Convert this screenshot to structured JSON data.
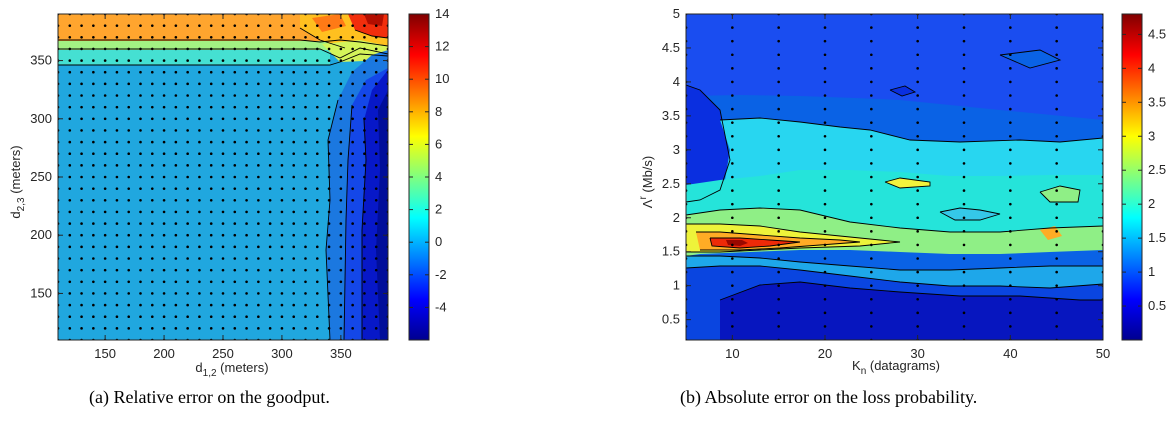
{
  "chart_data": [
    {
      "type": "heatmap",
      "subtype": "filled-contour",
      "caption": "(a) Relative error on the goodput.",
      "xlabel_main": "d",
      "xlabel_sub": "1,2",
      "xlabel_rest": " (meters)",
      "ylabel_main": "d",
      "ylabel_sub": "2,3",
      "ylabel_rest": " (meters)",
      "xlim": [
        110,
        390
      ],
      "ylim": [
        110,
        390
      ],
      "xticks": [
        150,
        200,
        250,
        300,
        350
      ],
      "yticks": [
        150,
        200,
        250,
        300,
        350
      ],
      "colorbar": {
        "min": -6,
        "max": 14,
        "ticks": [
          14,
          12,
          10,
          8,
          6,
          4,
          2,
          0,
          -2,
          -4
        ],
        "labels": [
          "14",
          "12",
          "10",
          "8",
          "6",
          "4",
          "2",
          "0",
          "-2",
          "-4"
        ]
      },
      "grid_points": {
        "x_start": 110,
        "x_step": 10,
        "x_end": 390,
        "y_start": 110,
        "y_step": 10,
        "y_end": 390
      },
      "regions": [
        {
          "value": 2.7,
          "label": "background plateau",
          "bounds": "whole field"
        },
        {
          "value": 6.5,
          "label": "top band",
          "x": [
            110,
            340
          ],
          "y": [
            365,
            390
          ]
        },
        {
          "value": 5.0,
          "label": "band",
          "x": [
            110,
            330
          ],
          "y": [
            358,
            365
          ]
        },
        {
          "value": 3.8,
          "label": "band",
          "x": [
            110,
            325
          ],
          "y": [
            350,
            358
          ]
        },
        {
          "value": 0.0,
          "label": "right zone",
          "x": [
            325,
            390
          ],
          "y": [
            110,
            340
          ]
        },
        {
          "value": -2.5,
          "label": "right zone",
          "x": [
            345,
            390
          ],
          "y": [
            110,
            310
          ]
        },
        {
          "value": -4.3,
          "label": "right edge",
          "x": [
            362,
            390
          ],
          "y": [
            110,
            290
          ]
        },
        {
          "value": 12.5,
          "label": "top-right hotspot",
          "x": [
            345,
            378
          ],
          "y": [
            372,
            390
          ]
        }
      ]
    },
    {
      "type": "heatmap",
      "subtype": "filled-contour",
      "caption": "(b) Absolute error on the loss probability.",
      "xlabel_main": "K",
      "xlabel_sub": "n",
      "xlabel_rest": " (datagrams)",
      "ylabel_main": "Λ",
      "ylabel_sup": "r",
      "ylabel_rest": " (Mb/s)",
      "xlim": [
        5,
        50
      ],
      "ylim": [
        0.2,
        5
      ],
      "xticks": [
        10,
        20,
        30,
        40,
        50
      ],
      "yticks": [
        0.5,
        1,
        1.5,
        2,
        2.5,
        3,
        3.5,
        4,
        4.5,
        5
      ],
      "colorbar": {
        "min": 0,
        "max": 4.8,
        "ticks": [
          4.5,
          4,
          3.5,
          3,
          2.5,
          2,
          1.5,
          1,
          0.5
        ],
        "labels": [
          "4.5",
          "4",
          "3.5",
          "3",
          "2.5",
          "2",
          "1.5",
          "1",
          "0.5"
        ]
      },
      "grid_points": {
        "x_start": 5,
        "x_step": 5,
        "x_end": 50,
        "y_start": 0.2,
        "y_step": 0.2,
        "y_end": 5
      },
      "regions": [
        {
          "value": 0.8,
          "label": "upper background",
          "y": [
            3.5,
            5
          ]
        },
        {
          "value": 1.7,
          "label": "middle band",
          "y": [
            2.1,
            3.5
          ]
        },
        {
          "value": 2.3,
          "label": "band",
          "y": [
            1.5,
            2.1
          ]
        },
        {
          "value": 3.5,
          "label": "peak band",
          "x": [
            5,
            30
          ],
          "y": [
            1.2,
            1.8
          ]
        },
        {
          "value": 4.6,
          "label": "peak",
          "x": [
            8,
            12
          ],
          "y": [
            1.3,
            1.5
          ]
        },
        {
          "value": 0.8,
          "label": "lower band",
          "y": [
            0.7,
            1.2
          ]
        },
        {
          "value": 0.2,
          "label": "bottom",
          "y": [
            0.2,
            0.7
          ]
        }
      ]
    }
  ]
}
